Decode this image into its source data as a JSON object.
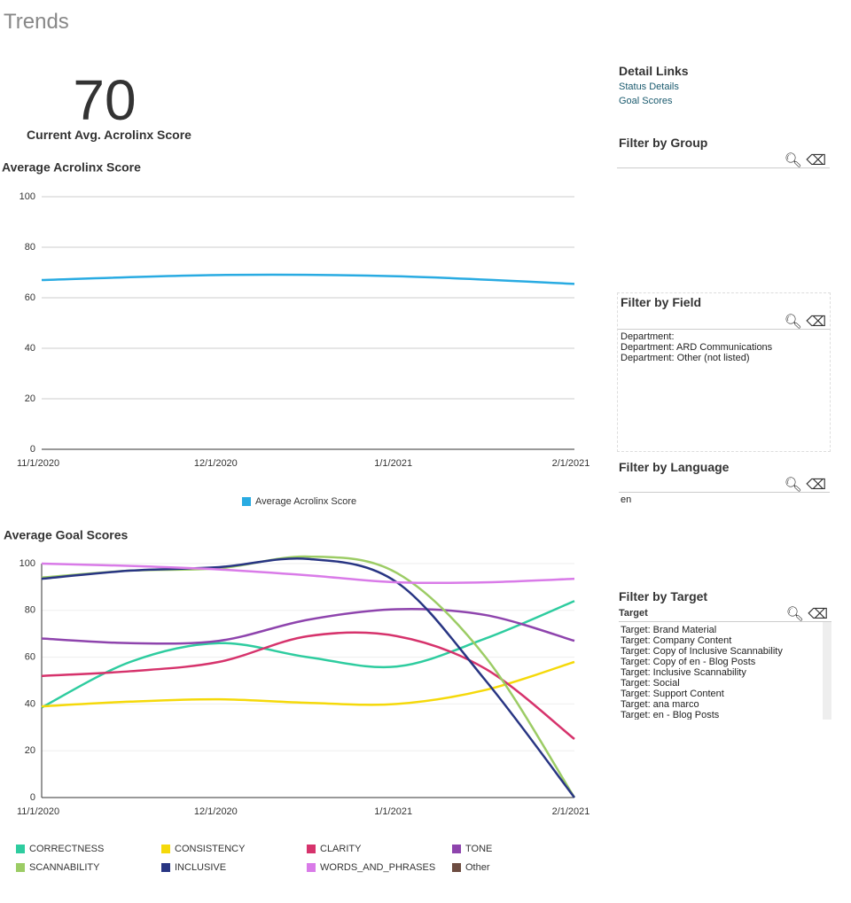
{
  "title": "Trends",
  "kpi": {
    "value": 70,
    "label": "Current Avg. Acrolinx Score"
  },
  "chart_data": [
    {
      "type": "line",
      "title": "Average Acrolinx Score",
      "categories": [
        "11/1/2020",
        "12/1/2020",
        "1/1/2021",
        "2/1/2021"
      ],
      "series": [
        {
          "name": "Average Acrolinx Score",
          "color": "#29abe2",
          "values": [
            67,
            69,
            68.5,
            65.5
          ]
        }
      ],
      "ylim": [
        0,
        100
      ],
      "yticks": [
        0,
        20,
        40,
        60,
        80,
        100
      ],
      "grid": true,
      "legend": "bottom"
    },
    {
      "type": "line",
      "title": "Average Goal Scores",
      "categories": [
        "11/1/2020",
        null,
        "12/1/2020",
        null,
        "1/1/2021",
        null,
        "2/1/2021"
      ],
      "series": [
        {
          "name": "CORRECTNESS",
          "color": "#2ecc9f",
          "values": [
            38.5,
            58,
            66,
            60,
            56,
            68,
            84
          ]
        },
        {
          "name": "CONSISTENCY",
          "color": "#f5d90a",
          "values": [
            39,
            41,
            42,
            40.5,
            40,
            46,
            58
          ]
        },
        {
          "name": "CLARITY",
          "color": "#d6336c",
          "values": [
            52,
            54,
            58,
            69,
            69,
            55,
            25
          ]
        },
        {
          "name": "TONE",
          "color": "#8e44ad",
          "values": [
            68,
            66,
            67,
            76,
            80.5,
            78,
            67
          ]
        },
        {
          "name": "SCANNABILITY",
          "color": "#9ccc65",
          "values": [
            94,
            97,
            98,
            103,
            96,
            60,
            0
          ]
        },
        {
          "name": "INCLUSIVE",
          "color": "#283583",
          "values": [
            93.5,
            97,
            98.5,
            102,
            92,
            50,
            0
          ]
        },
        {
          "name": "WORDS_AND_PHRASES",
          "color": "#d97be8",
          "values": [
            100,
            99,
            97.5,
            95,
            92,
            92,
            93.5
          ]
        },
        {
          "name": "Other",
          "color": "#6d4c41",
          "values": [
            null,
            null,
            null,
            null,
            null,
            null,
            null
          ]
        }
      ],
      "ylim": [
        0,
        100
      ],
      "yticks": [
        0,
        20,
        40,
        60,
        80,
        100
      ],
      "grid": true,
      "legend": "bottom"
    }
  ],
  "sidebar": {
    "detail_links": {
      "title": "Detail Links",
      "links": [
        "Status Details",
        "Goal Scores"
      ]
    },
    "filter_group": {
      "title": "Filter by Group"
    },
    "filter_field": {
      "title": "Filter by Field",
      "items": [
        "Department:",
        "Department: ARD Communications",
        "Department: Other (not listed)"
      ]
    },
    "filter_language": {
      "title": "Filter by Language",
      "items": [
        "en"
      ]
    },
    "filter_target": {
      "title": "Filter by Target",
      "header": "Target",
      "items": [
        "Target: Brand Material",
        "Target: Company Content",
        "Target: Copy of Inclusive Scannability",
        "Target: Copy of en - Blog Posts",
        "Target: Inclusive Scannability",
        "Target: Social",
        "Target: Support Content",
        "Target: ana marco",
        "Target: en - Blog Posts"
      ]
    }
  }
}
